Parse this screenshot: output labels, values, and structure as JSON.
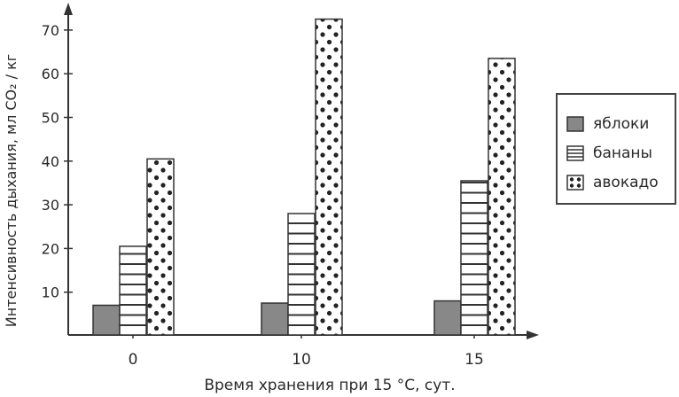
{
  "chart_data": {
    "type": "bar",
    "xlabel": "Время хранения при 15 °С, сут.",
    "ylabel": "Интенсивность дыхания, мл CO₂ / кг",
    "categories": [
      "0",
      "10",
      "15"
    ],
    "series": [
      {
        "name": "яблоки",
        "values": [
          7,
          7.5,
          8
        ],
        "pattern": "solid",
        "color": "#888888"
      },
      {
        "name": "бананы",
        "values": [
          20.5,
          28,
          35.5
        ],
        "pattern": "horizontal-lines",
        "color": "#ffffff"
      },
      {
        "name": "авокадо",
        "values": [
          40.5,
          72.5,
          63.5
        ],
        "pattern": "dots",
        "color": "#ffffff"
      }
    ],
    "ylim": [
      0,
      75
    ],
    "yticks": [
      10,
      20,
      30,
      40,
      50,
      60,
      70
    ],
    "grid": false,
    "legend_position": "right"
  }
}
